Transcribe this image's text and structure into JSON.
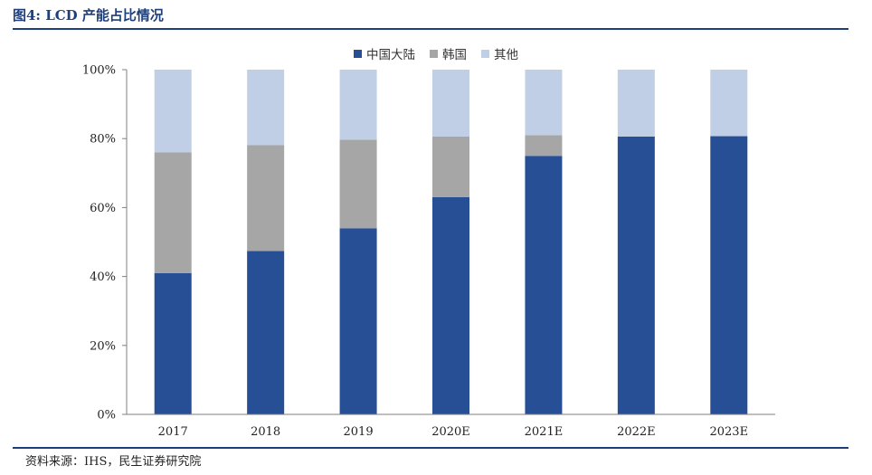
{
  "figure": {
    "title": "图4: LCD 产能占比情况",
    "source": "资料来源：IHS，民生证券研究院"
  },
  "colors": {
    "rule": "#1f3f7a",
    "series": [
      "#264f95",
      "#a6a6a6",
      "#c0cfe6"
    ]
  },
  "chart_data": {
    "type": "bar",
    "stacked": true,
    "categories": [
      "2017",
      "2018",
      "2019",
      "2020E",
      "2021E",
      "2022E",
      "2023E"
    ],
    "series": [
      {
        "name": "中国大陆",
        "values": [
          41,
          47.4,
          54,
          63,
          75,
          80.6,
          80.7
        ]
      },
      {
        "name": "韩国",
        "values": [
          35,
          30.7,
          25.7,
          17.6,
          6,
          0,
          0
        ]
      },
      {
        "name": "其他",
        "values": [
          24,
          21.9,
          20.3,
          19.4,
          19,
          19.4,
          19.3
        ]
      }
    ],
    "ylim": [
      0,
      100
    ],
    "yticks": [
      0,
      20,
      40,
      60,
      80,
      100
    ],
    "ytick_labels": [
      "0%",
      "20%",
      "40%",
      "60%",
      "80%",
      "100%"
    ],
    "legend_position": "top-center",
    "grid": false
  }
}
